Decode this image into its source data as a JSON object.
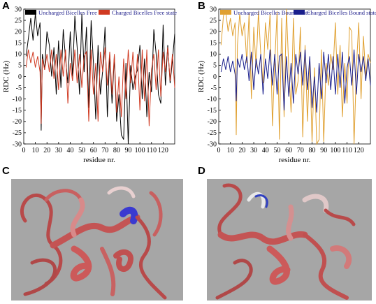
{
  "panels": {
    "a": "A",
    "b": "B",
    "c": "C",
    "d": "D"
  },
  "chart_data": [
    {
      "type": "line",
      "panel": "A",
      "xlabel": "residue nr.",
      "ylabel": "RDC (Hz)",
      "xlim": [
        0,
        130
      ],
      "ylim": [
        -30,
        30
      ],
      "xticks": [
        "0",
        "10",
        "20",
        "30",
        "40",
        "50",
        "60",
        "70",
        "80",
        "90",
        "100",
        "110",
        "120"
      ],
      "yticks": [
        "-30",
        "-25",
        "-20",
        "-15",
        "-10",
        "-5",
        "0",
        "5",
        "10",
        "15",
        "20",
        "25",
        "30"
      ],
      "legend_position": "top",
      "series": [
        {
          "name": "Uncharged Bicelles Free state",
          "color": "#000000",
          "x": [
            2,
            4,
            6,
            8,
            10,
            12,
            14,
            15,
            16,
            18,
            20,
            22,
            24,
            26,
            28,
            30,
            32,
            34,
            36,
            38,
            40,
            42,
            44,
            46,
            48,
            50,
            52,
            54,
            56,
            58,
            60,
            62,
            64,
            66,
            68,
            70,
            72,
            74,
            76,
            78,
            80,
            82,
            84,
            86,
            88,
            90,
            92,
            94,
            96,
            98,
            100,
            102,
            104,
            106,
            108,
            110,
            112,
            114,
            116,
            118,
            120,
            122,
            124,
            126,
            128,
            130
          ],
          "y": [
            9,
            17,
            26,
            16,
            28,
            18,
            24,
            -24,
            10,
            3,
            20,
            14,
            0,
            13,
            -8,
            16,
            -5,
            21,
            8,
            -3,
            20,
            0,
            27,
            13,
            -8,
            28,
            2,
            22,
            -14,
            25,
            6,
            -19,
            14,
            -8,
            3,
            22,
            -18,
            10,
            -12,
            9,
            -20,
            -8,
            -26,
            -28,
            6,
            -30,
            5,
            -6,
            0,
            3,
            14,
            -10,
            8,
            -18,
            2,
            -7,
            21,
            10,
            -8,
            -12,
            23,
            -4,
            14,
            -3,
            7,
            19
          ]
        },
        {
          "name": "Charged Bicelles Free state",
          "color": "#d03a22",
          "x": [
            2,
            4,
            6,
            8,
            10,
            12,
            14,
            15,
            16,
            18,
            20,
            22,
            24,
            26,
            28,
            30,
            32,
            34,
            36,
            38,
            40,
            42,
            44,
            46,
            48,
            50,
            52,
            54,
            56,
            58,
            60,
            62,
            64,
            66,
            68,
            70,
            72,
            74,
            76,
            78,
            80,
            82,
            84,
            86,
            88,
            90,
            92,
            94,
            96,
            98,
            100,
            102,
            104,
            106,
            108,
            110,
            112,
            114,
            116,
            118,
            120,
            122,
            124,
            126,
            128,
            130
          ],
          "y": [
            4,
            12,
            6,
            11,
            4,
            9,
            2,
            -21,
            8,
            3,
            10,
            2,
            12,
            -1,
            10,
            -6,
            12,
            0,
            12,
            -12,
            6,
            -2,
            12,
            -3,
            10,
            -5,
            9,
            11,
            -20,
            12,
            -8,
            6,
            -20,
            11,
            2,
            13,
            -4,
            11,
            -8,
            10,
            -16,
            0,
            -18,
            8,
            -10,
            12,
            -3,
            11,
            -6,
            10,
            -15,
            12,
            -11,
            12,
            -22,
            3,
            10,
            -6,
            12,
            -9,
            11,
            2,
            13,
            -2,
            10,
            -5
          ]
        }
      ]
    },
    {
      "type": "line",
      "panel": "B",
      "xlabel": "residue nr.",
      "ylabel": "RDC (Hz)",
      "xlim": [
        0,
        130
      ],
      "ylim": [
        -30,
        30
      ],
      "xticks": [
        "0",
        "10",
        "20",
        "30",
        "40",
        "50",
        "60",
        "70",
        "80",
        "90",
        "100",
        "110",
        "120"
      ],
      "yticks": [
        "-30",
        "-25",
        "-20",
        "-15",
        "-10",
        "-5",
        "0",
        "5",
        "10",
        "15",
        "20",
        "25",
        "30"
      ],
      "legend_position": "top",
      "series": [
        {
          "name": "Uncharged Bicelles Bound state",
          "color": "#e0a030",
          "x": [
            2,
            4,
            6,
            8,
            10,
            12,
            14,
            15,
            16,
            18,
            20,
            22,
            24,
            26,
            28,
            30,
            32,
            34,
            36,
            38,
            40,
            42,
            44,
            46,
            48,
            50,
            52,
            54,
            56,
            58,
            60,
            62,
            64,
            66,
            68,
            70,
            72,
            74,
            76,
            78,
            80,
            82,
            84,
            86,
            88,
            90,
            92,
            94,
            96,
            98,
            100,
            102,
            104,
            106,
            108,
            110,
            112,
            114,
            116,
            118,
            120,
            122,
            124,
            126,
            128,
            130
          ],
          "y": [
            14,
            27,
            29,
            20,
            26,
            18,
            24,
            -26,
            14,
            28,
            18,
            24,
            6,
            28,
            -10,
            22,
            4,
            29,
            10,
            -3,
            24,
            12,
            28,
            -22,
            6,
            29,
            -28,
            26,
            -18,
            30,
            4,
            -16,
            26,
            -8,
            -2,
            22,
            -27,
            14,
            -20,
            8,
            -29,
            4,
            -30,
            -28,
            12,
            -29,
            6,
            -4,
            10,
            3,
            24,
            -8,
            14,
            -18,
            6,
            -12,
            22,
            20,
            -30,
            4,
            24,
            -10,
            18,
            0,
            10,
            6
          ]
        },
        {
          "name": "Charged Bicelles Bound state",
          "color": "#1a1f8c",
          "x": [
            2,
            4,
            6,
            8,
            10,
            12,
            14,
            15,
            16,
            18,
            20,
            22,
            24,
            26,
            28,
            30,
            32,
            34,
            36,
            38,
            40,
            42,
            44,
            46,
            48,
            50,
            52,
            54,
            56,
            58,
            60,
            62,
            64,
            66,
            68,
            70,
            72,
            74,
            76,
            78,
            80,
            82,
            84,
            86,
            88,
            90,
            92,
            94,
            96,
            98,
            100,
            102,
            104,
            106,
            108,
            110,
            112,
            114,
            116,
            118,
            120,
            122,
            124,
            126,
            128,
            130
          ],
          "y": [
            2,
            8,
            3,
            9,
            2,
            7,
            1,
            -11,
            8,
            4,
            10,
            3,
            9,
            -2,
            11,
            -6,
            8,
            1,
            10,
            -8,
            8,
            -1,
            12,
            -4,
            10,
            -8,
            9,
            10,
            -15,
            9,
            -9,
            6,
            -12,
            10,
            1,
            11,
            -4,
            12,
            -6,
            9,
            -14,
            0,
            -16,
            6,
            -10,
            11,
            -3,
            10,
            -6,
            9,
            -8,
            10,
            -5,
            11,
            -12,
            4,
            9,
            -4,
            12,
            -8,
            10,
            2,
            9,
            -2,
            8,
            -4
          ]
        }
      ]
    }
  ],
  "images": {
    "c": {
      "description_icon": "protein-ribbon-structure-c"
    },
    "d": {
      "description_icon": "protein-ribbon-structure-d"
    }
  }
}
